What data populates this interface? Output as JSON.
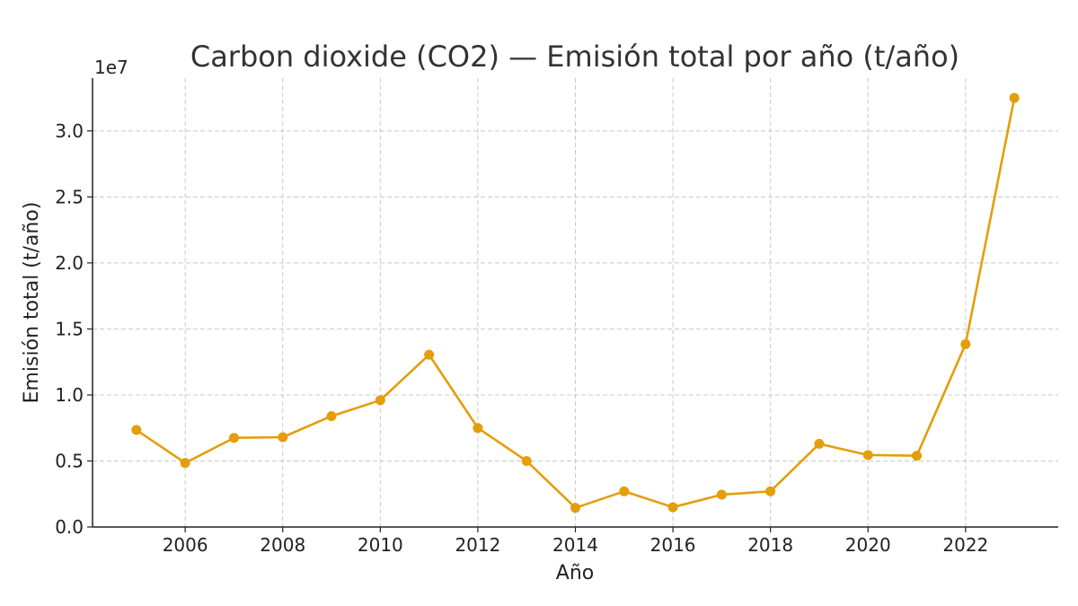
{
  "chart_data": {
    "type": "line",
    "title": "Carbon dioxide (CO2) — Emisión total por año (t/año)",
    "xlabel": "Año",
    "ylabel": "Emisión total (t/año)",
    "y_offset_label": "1e7",
    "y_scale": 10000000,
    "xlim": [
      2004.1,
      2023.9
    ],
    "ylim": [
      0,
      34000000
    ],
    "x_ticks": [
      2006,
      2008,
      2010,
      2012,
      2014,
      2016,
      2018,
      2020,
      2022
    ],
    "y_ticks": [
      0,
      5000000,
      10000000,
      15000000,
      20000000,
      25000000,
      30000000
    ],
    "y_tick_labels": [
      "0.0",
      "0.5",
      "1.0",
      "1.5",
      "2.0",
      "2.5",
      "3.0"
    ],
    "grid": true,
    "color": "#E39E0A",
    "series": [
      {
        "x": [
          2005,
          2006,
          2007,
          2008,
          2009,
          2010,
          2011,
          2012,
          2013,
          2014,
          2015,
          2016,
          2017,
          2018,
          2019,
          2020,
          2021,
          2022,
          2023
        ],
        "values": [
          7350000,
          4850000,
          6750000,
          6800000,
          8400000,
          9600000,
          13050000,
          7500000,
          5000000,
          1450000,
          2700000,
          1500000,
          2450000,
          2700000,
          6300000,
          5450000,
          5400000,
          13850000,
          32500000
        ]
      }
    ]
  }
}
